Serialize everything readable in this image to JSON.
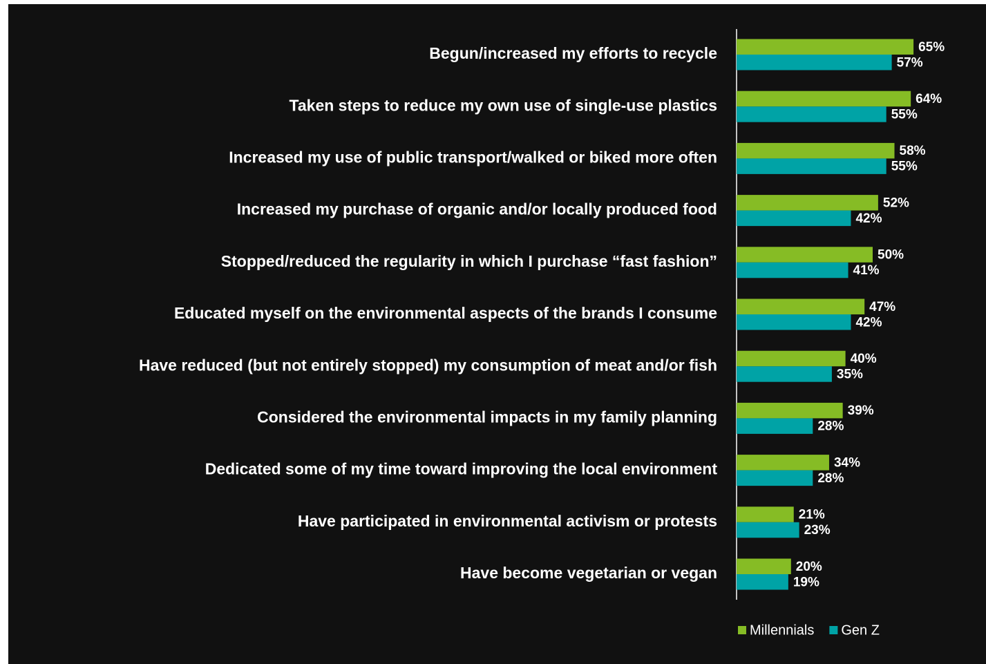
{
  "chart_data": {
    "type": "bar",
    "orientation": "horizontal",
    "categories": [
      "Begun/increased my efforts to recycle",
      "Taken steps to reduce my own use of single-use plastics",
      "Increased my use of public transport/walked or biked more often",
      "Increased my purchase of organic and/or locally produced food",
      "Stopped/reduced the regularity in which I purchase “fast fashion”",
      "Educated myself on the environmental aspects of the brands I consume",
      "Have reduced (but not entirely stopped) my consumption of meat and/or fish",
      "Considered the environmental impacts in my family planning",
      "Dedicated some of my time toward improving the local environment",
      "Have participated in environmental activism or protests",
      "Have become vegetarian or vegan"
    ],
    "series": [
      {
        "name": "Millennials",
        "color": "#86bc25",
        "values": [
          65,
          64,
          58,
          52,
          50,
          47,
          40,
          39,
          34,
          21,
          20
        ],
        "value_labels": [
          "65%",
          "64%",
          "58%",
          "52%",
          "50%",
          "47%",
          "40%",
          "39%",
          "34%",
          "21%",
          "20%"
        ]
      },
      {
        "name": "Gen Z",
        "color": "#00a3a6",
        "values": [
          57,
          55,
          55,
          42,
          41,
          42,
          35,
          28,
          28,
          23,
          19
        ],
        "value_labels": [
          "57%",
          "55%",
          "55%",
          "42%",
          "41%",
          "42%",
          "35%",
          "28%",
          "28%",
          "23%",
          "19%"
        ]
      }
    ],
    "legend": "bottom-right"
  }
}
